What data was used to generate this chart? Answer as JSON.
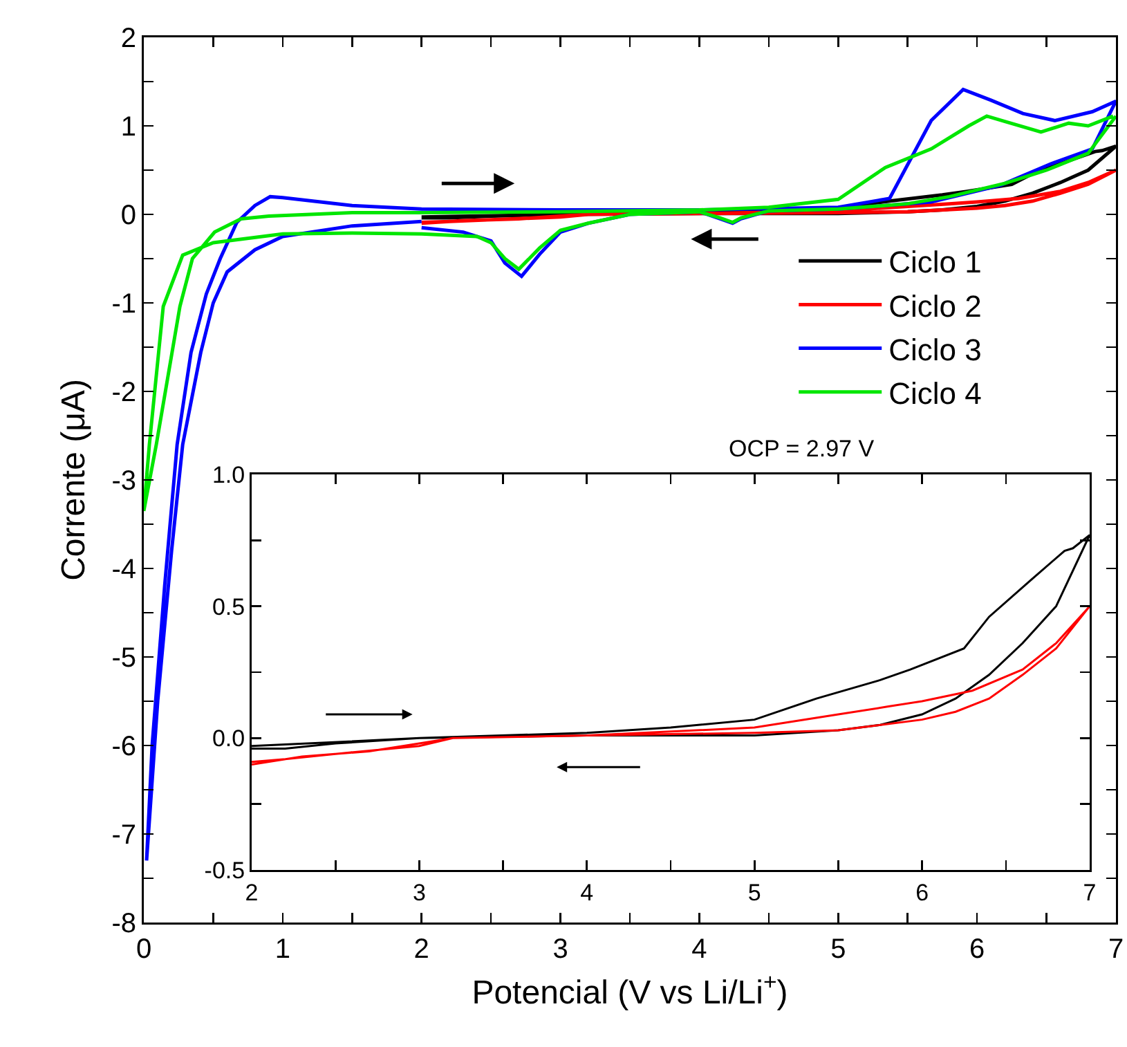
{
  "chart_data": [
    {
      "type": "line",
      "xlabel": "Potencial (V vs Li/Li$^{+}$)",
      "ylabel": "Corrente (μA)",
      "xlim": [
        0,
        7
      ],
      "ylim": [
        -8,
        2
      ],
      "xticks": [
        0,
        {
          "value": 0.5,
          "label": null
        },
        1,
        {
          "value": 1.5,
          "label": null
        },
        2,
        {
          "value": 2.5,
          "label": null
        },
        3,
        {
          "value": 3.5,
          "label": null
        },
        4,
        {
          "value": 4.5,
          "label": null
        },
        5,
        {
          "value": 5.5,
          "label": null
        },
        6,
        {
          "value": 6.5,
          "label": null
        },
        7
      ],
      "yticks": [
        -8,
        {
          "value": -7.5,
          "label": null
        },
        -7,
        {
          "value": -6.5,
          "label": null
        },
        -6,
        {
          "value": -5.5,
          "label": null
        },
        -5,
        {
          "value": -4.5,
          "label": null
        },
        -4,
        {
          "value": -3.5,
          "label": null
        },
        -3,
        {
          "value": -2.5,
          "label": null
        },
        -2,
        {
          "value": -1.5,
          "label": null
        },
        -1,
        {
          "value": -0.5,
          "label": null
        },
        0,
        {
          "value": 0.5,
          "label": null
        },
        1,
        {
          "value": 1.5,
          "label": null
        },
        2
      ],
      "grid": false,
      "legend": "top right",
      "annotations": [
        "OCP = 2.97 V"
      ],
      "series": [
        {
          "name": "Ciclo 1",
          "color": "#000000",
          "x": [
            2,
            3,
            4,
            4.5,
            5,
            5.37,
            5.75,
            5.93,
            6.25,
            6.4,
            6.65,
            6.85,
            6.9,
            7,
            6.8,
            6.6,
            6.4,
            6.2,
            6,
            5.75,
            5.5,
            5,
            4,
            3,
            2.5,
            2.2,
            2
          ],
          "values": [
            -0.03,
            0,
            0.02,
            0.04,
            0.07,
            0.15,
            0.22,
            0.26,
            0.34,
            0.46,
            0.6,
            0.71,
            0.72,
            0.77,
            0.5,
            0.36,
            0.24,
            0.15,
            0.09,
            0.05,
            0.03,
            0.01,
            0.01,
            0,
            -0.02,
            -0.04,
            -0.04
          ]
        },
        {
          "name": "Ciclo 2",
          "color": "#ff0000",
          "x": [
            2,
            2.3,
            2.7,
            3,
            3.2,
            4,
            5,
            5.5,
            5.8,
            6,
            6.3,
            6.6,
            6.8,
            7,
            6.8,
            6.6,
            6.4,
            6.2,
            6,
            5.5,
            5,
            4,
            3.2,
            3,
            2.5,
            2.2,
            2
          ],
          "values": [
            -0.1,
            -0.07,
            -0.05,
            -0.02,
            0,
            0.01,
            0.04,
            0.09,
            0.12,
            0.14,
            0.18,
            0.26,
            0.36,
            0.5,
            0.34,
            0.24,
            0.15,
            0.1,
            0.07,
            0.03,
            0.02,
            0.01,
            0,
            -0.03,
            -0.06,
            -0.08,
            -0.09
          ]
        },
        {
          "name": "Ciclo 3",
          "color": "#0000ff",
          "x": [
            2,
            1.5,
            1,
            0.8,
            0.6,
            0.5,
            0.41,
            0.28,
            0.2,
            0.1,
            0.02,
            0.06,
            0.15,
            0.24,
            0.34,
            0.45,
            0.55,
            0.67,
            0.8,
            0.91,
            1,
            1.5,
            2,
            3,
            4,
            5,
            5.37,
            5.67,
            5.9,
            6.1,
            6.33,
            6.56,
            6.83,
            7,
            6.83,
            6.53,
            6.17,
            5.67,
            5,
            4.5,
            4.3,
            4.24,
            4.15,
            4,
            3.5,
            3.2,
            3,
            2.85,
            2.72,
            2.6,
            2.5,
            2.3,
            2
          ],
          "values": [
            -0.08,
            -0.13,
            -0.25,
            -0.4,
            -0.65,
            -1,
            -1.56,
            -2.6,
            -3.8,
            -5.5,
            -7.3,
            -6,
            -4.2,
            -2.6,
            -1.56,
            -0.9,
            -0.5,
            -0.09,
            0.1,
            0.2,
            0.19,
            0.1,
            0.06,
            0.05,
            0.05,
            0.08,
            0.18,
            1.06,
            1.41,
            1.29,
            1.14,
            1.06,
            1.16,
            1.28,
            0.74,
            0.57,
            0.33,
            0.14,
            0.06,
            0.04,
            -0.05,
            -0.1,
            -0.05,
            0.03,
            0,
            -0.1,
            -0.2,
            -0.45,
            -0.7,
            -0.55,
            -0.3,
            -0.2,
            -0.15
          ]
        },
        {
          "name": "Ciclo 4",
          "color": "#00e600",
          "x": [
            7,
            6.8,
            6.5,
            6.2,
            5.8,
            5.5,
            5,
            4.5,
            4.3,
            4.24,
            4.15,
            4,
            3.5,
            3.2,
            3,
            2.85,
            2.7,
            2.6,
            2.5,
            2.4,
            2,
            1.5,
            1,
            0.5,
            0.28,
            0.14,
            0.04,
            0,
            0.09,
            0.26,
            0.35,
            0.51,
            0.7,
            0.9,
            1.5,
            2,
            3,
            4,
            4.5,
            5,
            5.34,
            5.67,
            5.94,
            6.07,
            6.2,
            6.46,
            6.66,
            6.8,
            6.98
          ],
          "values": [
            1.11,
            0.69,
            0.5,
            0.35,
            0.2,
            0.12,
            0.06,
            0.04,
            -0.04,
            -0.09,
            -0.04,
            0.03,
            0,
            -0.1,
            -0.18,
            -0.38,
            -0.62,
            -0.5,
            -0.32,
            -0.25,
            -0.22,
            -0.21,
            -0.22,
            -0.32,
            -0.46,
            -1.04,
            -2.6,
            -3.35,
            -2.6,
            -1.04,
            -0.5,
            -0.2,
            -0.05,
            -0.02,
            0.02,
            0.02,
            0.03,
            0.05,
            0.08,
            0.17,
            0.53,
            0.74,
            1,
            1.11,
            1.05,
            0.93,
            1.03,
            1,
            1.11
          ]
        }
      ]
    },
    {
      "type": "line",
      "xlim": [
        2,
        7
      ],
      "ylim": [
        -0.5,
        1
      ],
      "xticks": [
        2,
        {
          "value": 2.5,
          "label": null
        },
        3,
        {
          "value": 3.5,
          "label": null
        },
        4,
        {
          "value": 4.5,
          "label": null
        },
        5,
        {
          "value": 5.5,
          "label": null
        },
        6,
        {
          "value": 6.5,
          "label": null
        },
        7
      ],
      "yticks": [
        -0.5,
        {
          "value": -0.25,
          "label": null
        },
        {
          "value": 0,
          "label": "0.0"
        },
        {
          "value": 0.25,
          "label": null
        },
        0.5,
        {
          "value": 0.75,
          "label": null
        },
        {
          "value": 1,
          "label": "1.0"
        }
      ],
      "grid": false,
      "legend": false,
      "series": [
        {
          "color": "#000000",
          "x": [
            2,
            3,
            4,
            4.5,
            5,
            5.37,
            5.75,
            5.93,
            6.25,
            6.4,
            6.65,
            6.85,
            6.9,
            7,
            6.8,
            6.6,
            6.4,
            6.2,
            6,
            5.75,
            5.5,
            5,
            4,
            3,
            2.5,
            2.2,
            2
          ],
          "values": [
            -0.03,
            0,
            0.02,
            0.04,
            0.07,
            0.15,
            0.22,
            0.26,
            0.34,
            0.46,
            0.6,
            0.71,
            0.72,
            0.77,
            0.5,
            0.36,
            0.24,
            0.15,
            0.09,
            0.05,
            0.03,
            0.01,
            0.01,
            0,
            -0.02,
            -0.04,
            -0.04
          ]
        },
        {
          "color": "#ff0000",
          "x": [
            2,
            2.3,
            2.7,
            3,
            3.2,
            4,
            5,
            5.5,
            5.8,
            6,
            6.3,
            6.6,
            6.8,
            7,
            6.8,
            6.6,
            6.4,
            6.2,
            6,
            5.5,
            5,
            4,
            3.2,
            3,
            2.5,
            2.2,
            2
          ],
          "values": [
            -0.1,
            -0.07,
            -0.05,
            -0.02,
            0,
            0.01,
            0.04,
            0.09,
            0.12,
            0.14,
            0.18,
            0.26,
            0.36,
            0.5,
            0.34,
            0.24,
            0.15,
            0.1,
            0.07,
            0.03,
            0.02,
            0.01,
            0,
            -0.03,
            -0.06,
            -0.08,
            -0.09
          ]
        }
      ]
    }
  ]
}
